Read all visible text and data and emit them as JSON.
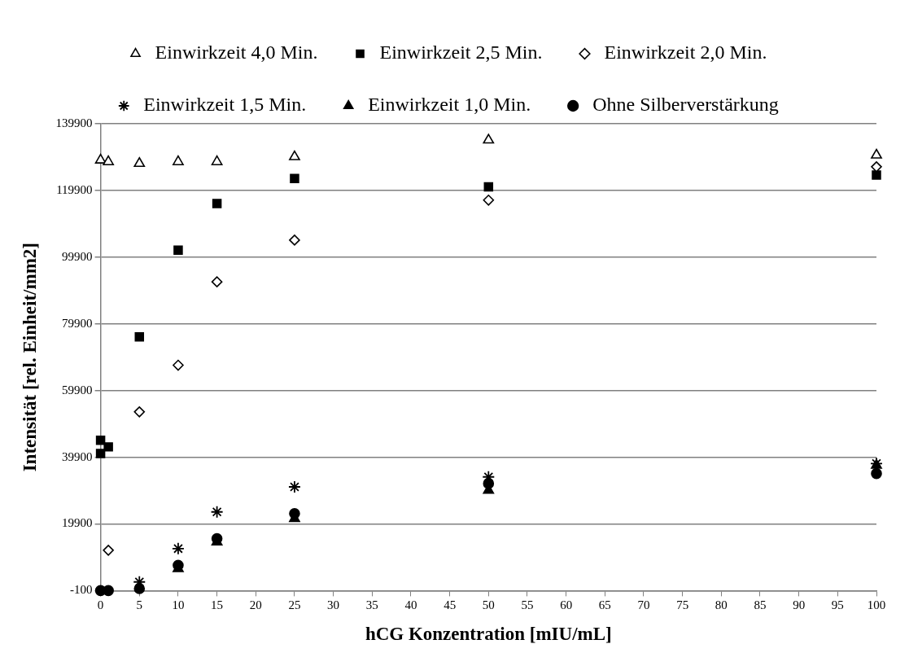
{
  "chart_data": {
    "type": "scatter",
    "xlabel": "hCG Konzentration [mIU/mL]",
    "ylabel": "Intensität [rel. Einheit/mm2]",
    "x": [
      0,
      1,
      5,
      10,
      15,
      25,
      50,
      100
    ],
    "xlim": [
      0,
      100
    ],
    "xticks": [
      0,
      5,
      10,
      15,
      20,
      25,
      30,
      35,
      40,
      45,
      50,
      55,
      60,
      65,
      70,
      75,
      80,
      85,
      90,
      95,
      100
    ],
    "ylim": [
      -100,
      139900
    ],
    "yticks": [
      -100,
      19900,
      39900,
      59900,
      79900,
      99900,
      119900,
      139900
    ],
    "grid": "y",
    "legend": "top",
    "series": [
      {
        "name": "Einwirkzeit 4,0 Min.",
        "color": "#ffffff",
        "marker": "triangle",
        "values": [
          129000,
          128500,
          128000,
          128500,
          128500,
          130000,
          135000,
          130500
        ]
      },
      {
        "name": "Einwirkzeit 2,5 Min.",
        "color": "#000000",
        "marker": "square",
        "x": [
          0,
          0,
          1,
          5,
          10,
          15,
          25,
          50,
          100
        ],
        "values": [
          45000,
          41000,
          43000,
          76000,
          102000,
          116000,
          123500,
          121000,
          124500
        ]
      },
      {
        "name": "Einwirkzeit 2,0 Min.",
        "color": "#ffffff",
        "marker": "diamond",
        "values": [
          null,
          12000,
          53500,
          67500,
          92500,
          105000,
          117000,
          127000
        ]
      },
      {
        "name": "Einwirkzeit 1,5 Min.",
        "color": "#000000",
        "marker": "cross",
        "values": [
          null,
          null,
          2500,
          12500,
          23500,
          31000,
          34000,
          38000
        ]
      },
      {
        "name": "Einwirkzeit 1,0 Min.",
        "color": "#000000",
        "marker": "triangle",
        "values": [
          null,
          null,
          null,
          6500,
          14500,
          21500,
          30000,
          37500
        ]
      },
      {
        "name": "Ohne Silberverstärkung",
        "color": "#000000",
        "marker": "circle",
        "values": [
          -100,
          -100,
          500,
          7500,
          15500,
          23000,
          32000,
          35000
        ]
      }
    ]
  }
}
